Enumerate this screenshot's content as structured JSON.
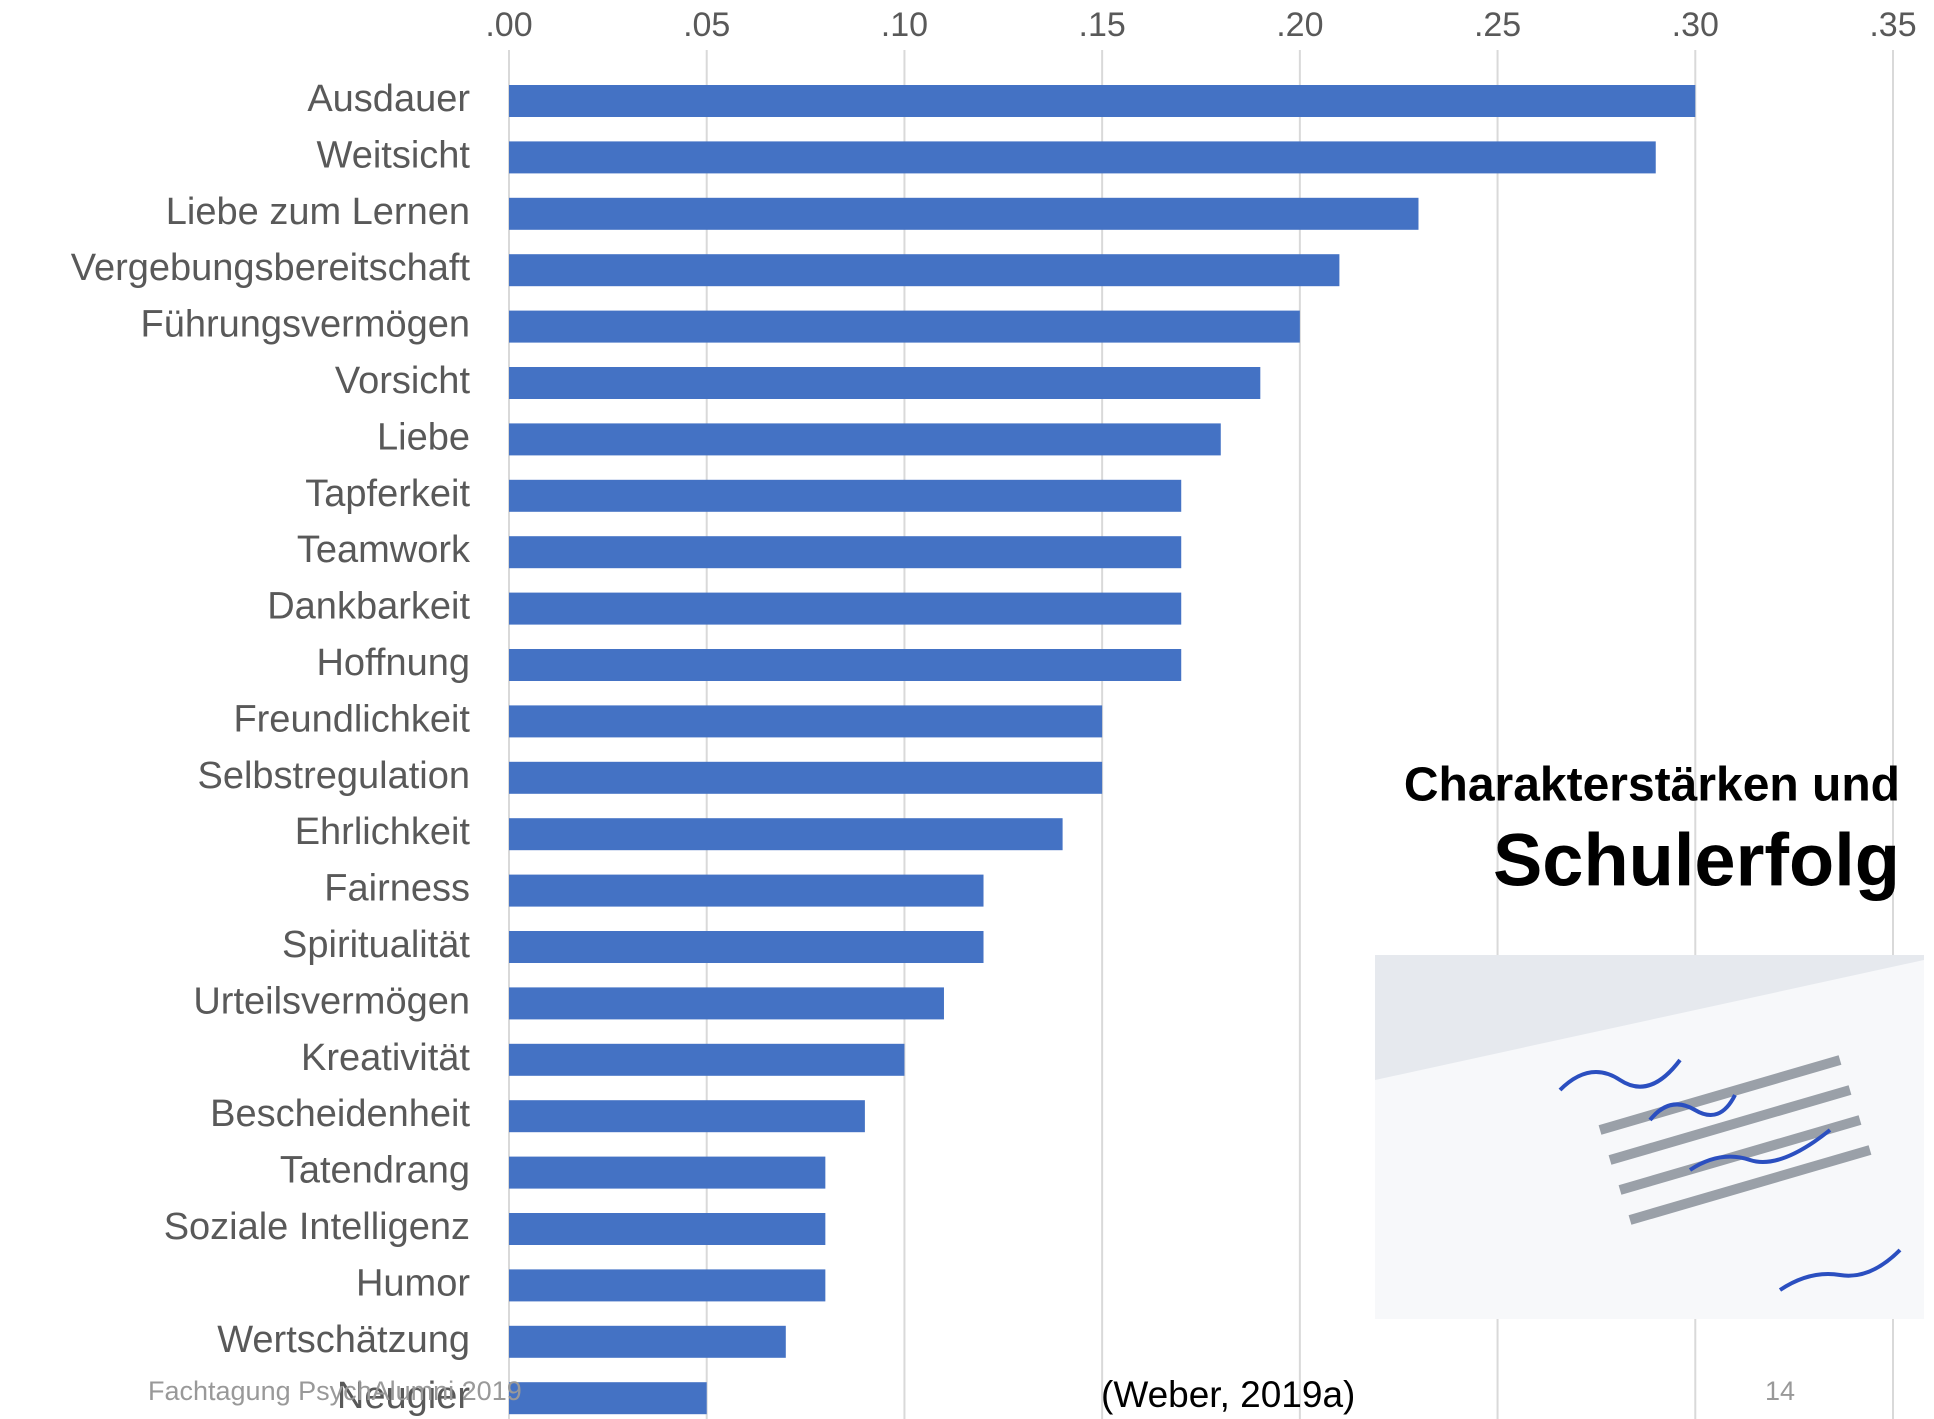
{
  "chart_data": {
    "type": "barh",
    "categories": [
      "Ausdauer",
      "Weitsicht",
      "Liebe zum Lernen",
      "Vergebungsbereitschaft",
      "Führungsvermögen",
      "Vorsicht",
      "Liebe",
      "Tapferkeit",
      "Teamwork",
      "Dankbarkeit",
      "Hoffnung",
      "Freundlichkeit",
      "Selbstregulation",
      "Ehrlichkeit",
      "Fairness",
      "Spiritualität",
      "Urteilsvermögen",
      "Kreativität",
      "Bescheidenheit",
      "Tatendrang",
      "Soziale Intelligenz",
      "Humor",
      "Wertschätzung",
      "Neugier"
    ],
    "values": [
      0.3,
      0.29,
      0.23,
      0.21,
      0.2,
      0.19,
      0.18,
      0.17,
      0.17,
      0.17,
      0.17,
      0.15,
      0.15,
      0.14,
      0.12,
      0.12,
      0.11,
      0.1,
      0.09,
      0.08,
      0.08,
      0.08,
      0.07,
      0.05
    ],
    "color": "#4472c4",
    "xlim": [
      0,
      0.35
    ],
    "xticks": [
      {
        "value": 0,
        "label": ".00"
      },
      {
        "value": 0.05,
        "label": ".05"
      },
      {
        "value": 0.1,
        "label": ".10"
      },
      {
        "value": 0.15,
        "label": ".15"
      },
      {
        "value": 0.2,
        "label": ".20"
      },
      {
        "value": 0.25,
        "label": ".25"
      },
      {
        "value": 0.3,
        "label": ".30"
      },
      {
        "value": 0.35,
        "label": ".35"
      }
    ],
    "grid": true
  },
  "slide": {
    "title_line1": "Charakterstärken und",
    "title_line2": "Schulerfolg",
    "footer": "Fachtagung PsychAlumni 2019",
    "source": "(Weber, 2019a)",
    "page": "14"
  }
}
